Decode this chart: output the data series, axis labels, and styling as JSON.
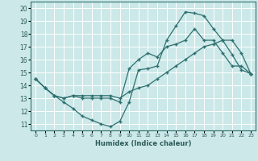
{
  "xlabel": "Humidex (Indice chaleur)",
  "bg_color": "#cce8e8",
  "grid_color": "#b0d4d4",
  "line_color": "#2d7070",
  "xlim": [
    -0.5,
    23.5
  ],
  "ylim": [
    10.5,
    20.5
  ],
  "xticks": [
    0,
    1,
    2,
    3,
    4,
    5,
    6,
    7,
    8,
    9,
    10,
    11,
    12,
    13,
    14,
    15,
    16,
    17,
    18,
    19,
    20,
    21,
    22,
    23
  ],
  "yticks": [
    11,
    12,
    13,
    14,
    15,
    16,
    17,
    18,
    19,
    20
  ],
  "line1": {
    "x": [
      0,
      1,
      2,
      3,
      4,
      5,
      6,
      7,
      8,
      9,
      10,
      11,
      12,
      13,
      14,
      15,
      16,
      17,
      18,
      19,
      20,
      21,
      22,
      23
    ],
    "y": [
      14.5,
      13.8,
      13.2,
      12.7,
      12.2,
      11.6,
      11.3,
      11.0,
      10.8,
      11.2,
      12.7,
      15.2,
      15.3,
      15.5,
      17.5,
      18.6,
      19.7,
      19.6,
      19.4,
      18.4,
      17.5,
      16.4,
      15.2,
      14.9
    ]
  },
  "line2": {
    "x": [
      0,
      1,
      2,
      3,
      4,
      5,
      6,
      7,
      8,
      9,
      10,
      11,
      12,
      13,
      14,
      15,
      16,
      17,
      18,
      19,
      20,
      21,
      22,
      23
    ],
    "y": [
      14.5,
      13.8,
      13.2,
      13.0,
      13.2,
      13.0,
      13.0,
      13.0,
      13.0,
      12.7,
      15.3,
      16.0,
      16.5,
      16.2,
      17.0,
      17.2,
      17.5,
      18.4,
      17.5,
      17.5,
      16.5,
      15.5,
      15.5,
      14.9
    ]
  },
  "line3": {
    "x": [
      0,
      1,
      2,
      3,
      4,
      5,
      6,
      7,
      8,
      9,
      10,
      11,
      12,
      13,
      14,
      15,
      16,
      17,
      18,
      19,
      20,
      21,
      22,
      23
    ],
    "y": [
      14.5,
      13.8,
      13.2,
      13.0,
      13.2,
      13.2,
      13.2,
      13.2,
      13.2,
      13.0,
      13.5,
      13.8,
      14.0,
      14.5,
      15.0,
      15.5,
      16.0,
      16.5,
      17.0,
      17.2,
      17.5,
      17.5,
      16.5,
      14.9
    ]
  }
}
